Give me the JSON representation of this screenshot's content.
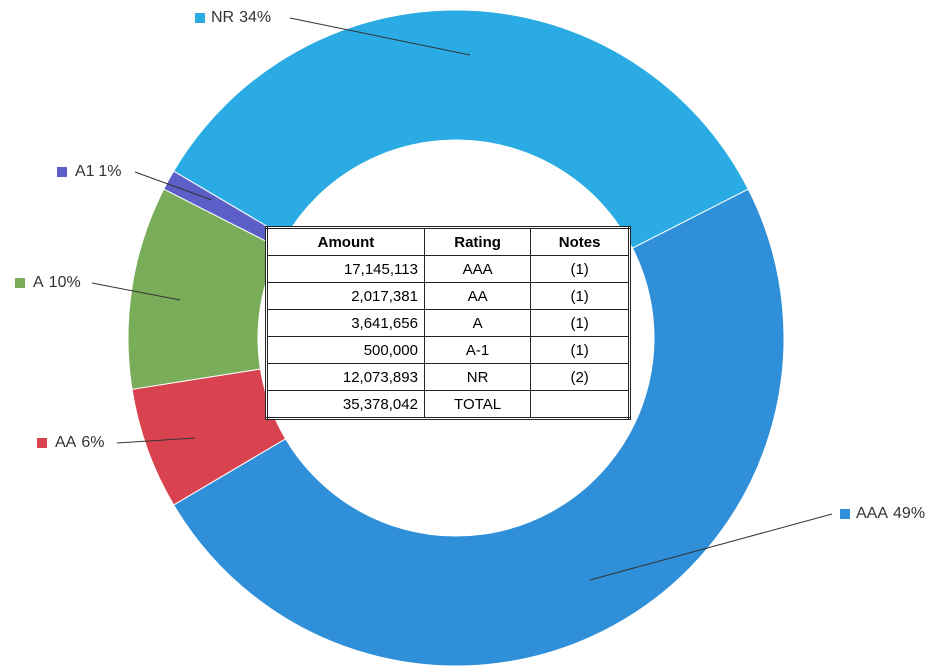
{
  "chart_data": {
    "type": "donut",
    "categories": [
      "AAA",
      "AA",
      "A",
      "A1",
      "NR"
    ],
    "values": [
      49,
      6,
      10,
      1,
      34
    ],
    "value_labels": [
      "49%",
      "6%",
      "10%",
      "1%",
      "34%"
    ],
    "colors": [
      "#2f8fd8",
      "#d9434f",
      "#79ad5a",
      "#5b5fc7",
      "#2aabe3"
    ]
  },
  "table": {
    "header": [
      "Amount",
      "Rating",
      "Notes"
    ],
    "rows": [
      [
        "17,145,113",
        "AAA",
        "(1)"
      ],
      [
        "2,017,381",
        "AA",
        "(1)"
      ],
      [
        "3,641,656",
        "A",
        "(1)"
      ],
      [
        "500,000",
        "A-1",
        "(1)"
      ],
      [
        "12,073,893",
        "NR",
        "(2)"
      ],
      [
        "35,378,042",
        "TOTAL"
      ]
    ]
  }
}
